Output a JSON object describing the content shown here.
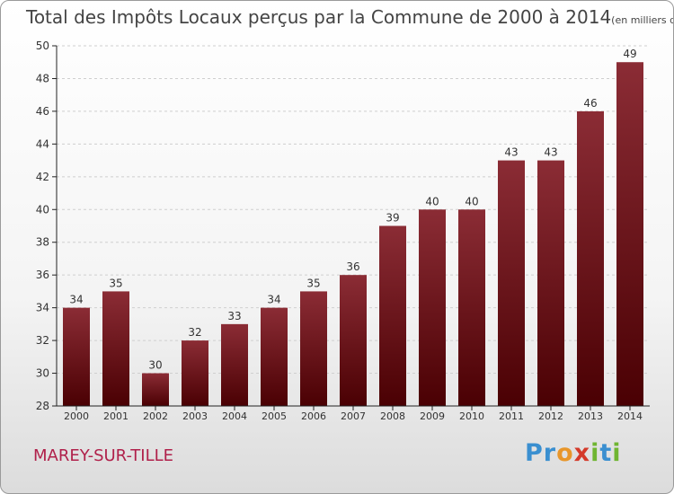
{
  "title": "Total des Impôts Locaux perçus par la Commune de 2000 à 2014",
  "subtitle": "(en milliers d'€)",
  "commune": "MAREY-SUR-TILLE",
  "logo": "Proxiti",
  "colors": {
    "bar_top": "#8b2c35",
    "bar_bottom": "#4a0003",
    "axis": "#222222",
    "commune": "#b0204a"
  },
  "chart_data": {
    "type": "bar",
    "title": "Total des Impôts Locaux perçus par la Commune de 2000 à 2014",
    "ylabel": "en milliers d'€",
    "categories": [
      "2000",
      "2001",
      "2002",
      "2003",
      "2004",
      "2005",
      "2006",
      "2007",
      "2008",
      "2009",
      "2010",
      "2011",
      "2012",
      "2013",
      "2014"
    ],
    "values": [
      34,
      35,
      30,
      32,
      33,
      34,
      35,
      36,
      39,
      40,
      40,
      43,
      43,
      46,
      49
    ],
    "ylim": [
      28,
      50
    ],
    "yticks": [
      28,
      30,
      32,
      34,
      36,
      38,
      40,
      42,
      44,
      46,
      48,
      50
    ]
  }
}
